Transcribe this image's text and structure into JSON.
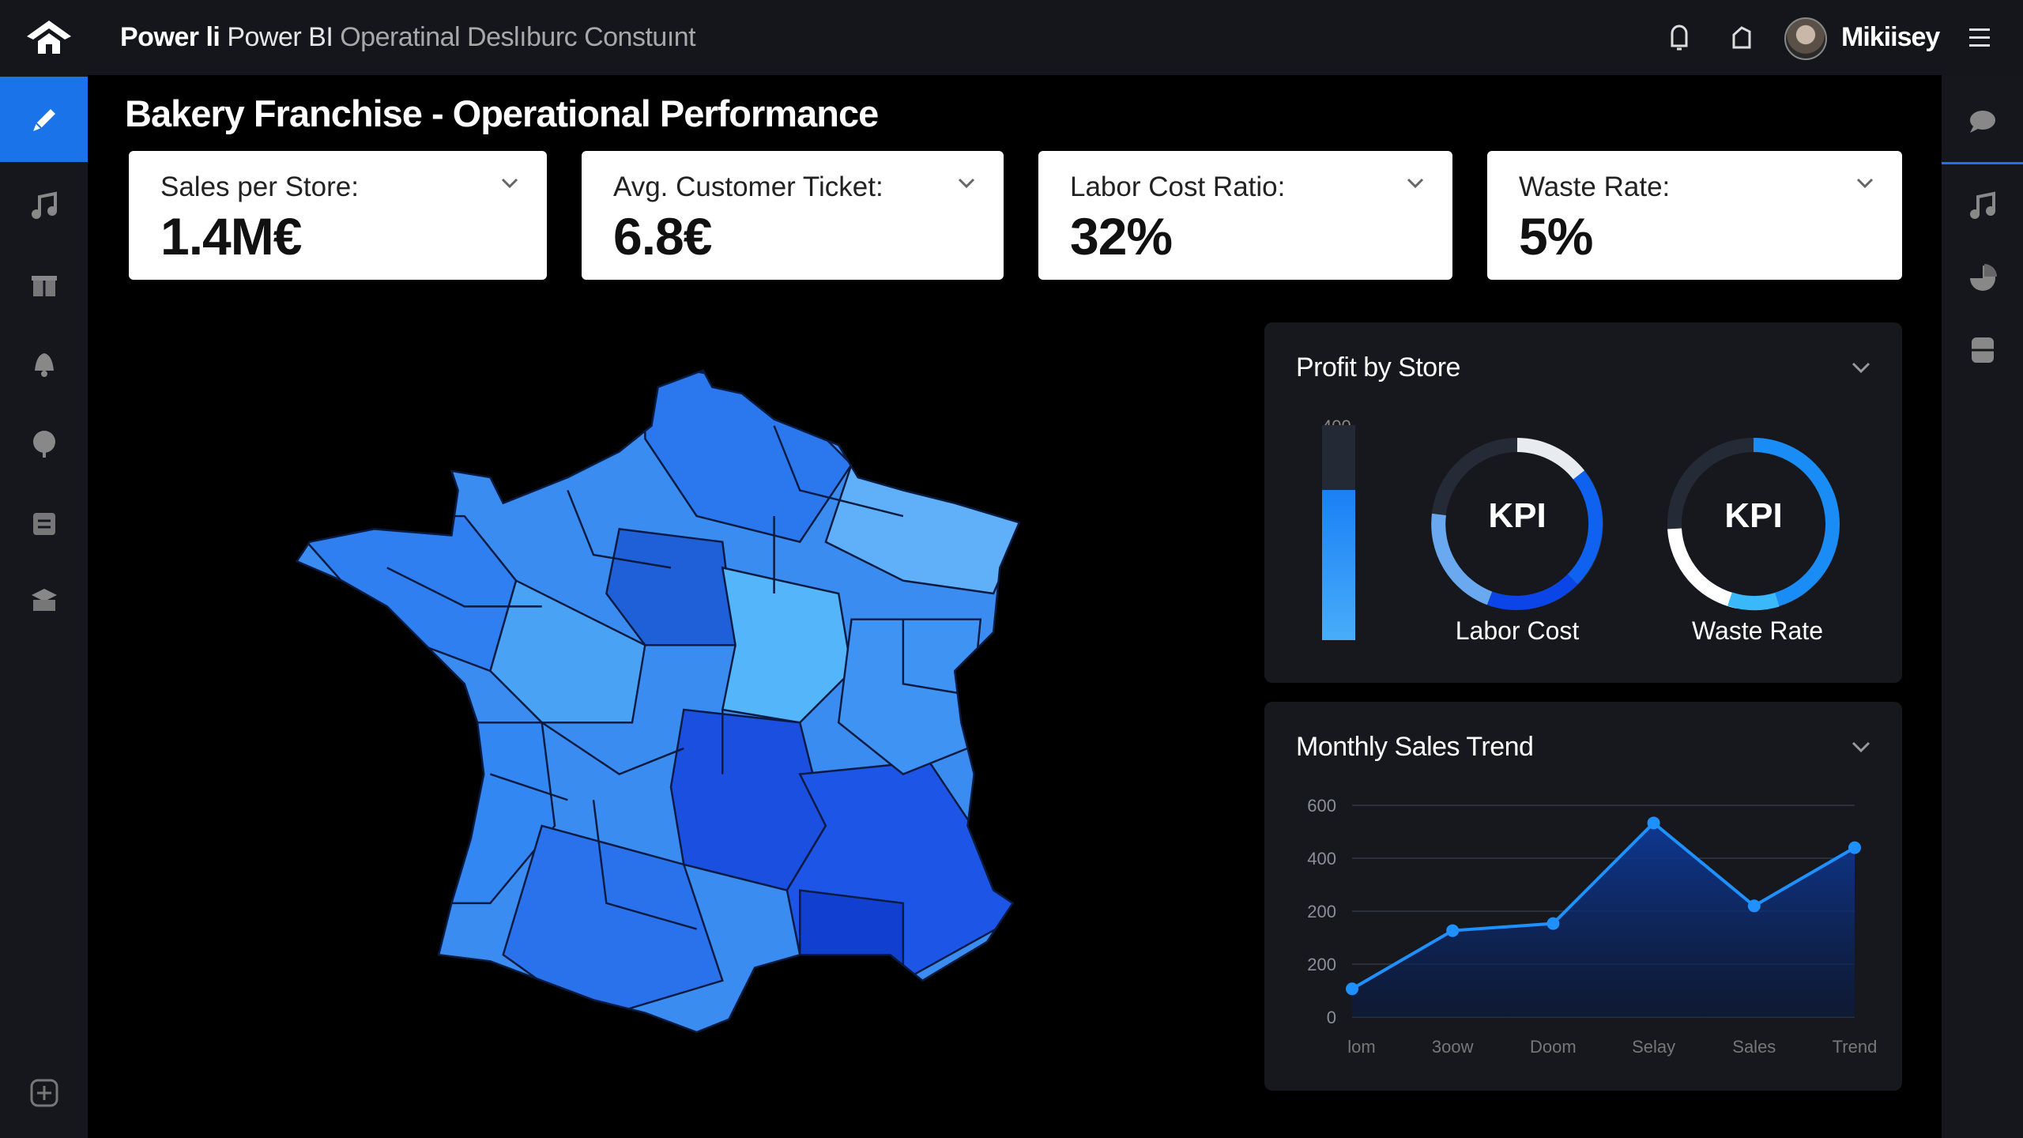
{
  "topbar": {
    "title_part1": "Power li",
    "title_part2": "Power BI",
    "title_part3": "Operatinal Deslıburc Constuınt",
    "username": "Mikiisey",
    "icons": [
      "home-logo-icon",
      "notification-icon",
      "share-icon",
      "avatar",
      "hamburger-menu-icon"
    ]
  },
  "sidebar": {
    "items": [
      "edit-icon",
      "music-icon",
      "gift-icon",
      "bell-icon",
      "leaf-icon",
      "package-icon",
      "stack-icon",
      "add-icon"
    ],
    "active": "edit-icon"
  },
  "right_sidebar": {
    "items": [
      "chat-icon",
      "music-icon",
      "pie-icon",
      "database-icon"
    ]
  },
  "page": {
    "title": "Bakery Franchise - Operational Performance"
  },
  "kpis": [
    {
      "label": "Sales per Store:",
      "value": "1.4M€"
    },
    {
      "label": "Avg. Customer Ticket:",
      "value": "6.8€"
    },
    {
      "label": "Labor Cost Ratio:",
      "value": "32%"
    },
    {
      "label": "Waste Rate:",
      "value": "5%"
    }
  ],
  "colors": {
    "accent": "#1a73e8",
    "panel": "#16181d",
    "line": "#1e90ff",
    "area": "#0d2f7a"
  },
  "profit_panel": {
    "title": "Profit by Store",
    "bar": {
      "max_label": "400",
      "fill_fraction": 0.7
    },
    "gauges": [
      {
        "center": "KPI",
        "label": "Labor Cost"
      },
      {
        "center": "KPI",
        "label": "Waste Rate"
      }
    ]
  },
  "chart_data": {
    "type": "area",
    "title": "Monthly Sales Trend",
    "categories": [
      "lom",
      "3oow",
      "Doom",
      "Selay",
      "Sales",
      "Trend"
    ],
    "values": [
      80,
      245,
      265,
      550,
      315,
      480
    ],
    "ytick_labels": [
      "600",
      "400",
      "200",
      "200",
      "0"
    ],
    "ylim": [
      0,
      600
    ],
    "grid": true,
    "legend": "none"
  }
}
